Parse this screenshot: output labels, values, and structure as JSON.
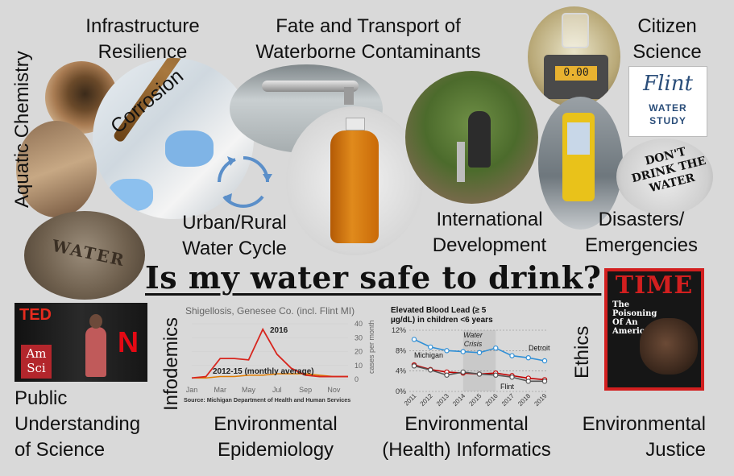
{
  "labels": {
    "aquatic_chemistry": "Aquatic Chemistry",
    "infrastructure_resilience_1": "Infrastructure",
    "infrastructure_resilience_2": "Resilience",
    "fate_transport_1": "Fate and Transport of",
    "fate_transport_2": "Waterborne Contaminants",
    "citizen_science_1": "Citizen",
    "citizen_science_2": "Science",
    "corrosion": "Corrosion",
    "urban_rural_1": "Urban/Rural",
    "urban_rural_2": "Water Cycle",
    "intl_dev_1": "International",
    "intl_dev_2": "Development",
    "disasters_1": "Disasters/",
    "disasters_2": "Emergencies",
    "main_question": "Is my water safe to drink?",
    "infodemics": "Infodemics",
    "ethics": "Ethics",
    "public_understanding_1": "Public",
    "public_understanding_2": "Understanding",
    "public_understanding_3": "of Science",
    "env_epi_1": "Environmental",
    "env_epi_2": "Epidemiology",
    "env_info_1": "Environmental",
    "env_info_2": "(Health) Informatics",
    "env_justice_1": "Environmental",
    "env_justice_2": "Justice"
  },
  "images": {
    "flint_logo_script": "Flint",
    "flint_logo_water": "WATER",
    "flint_logo_study": "STUDY",
    "dont_drink_1": "DON'T",
    "dont_drink_2": "DRINK THE",
    "dont_drink_3": "WATER",
    "manhole_text": "WATER",
    "ted_logo": "TED",
    "amsci_1": "Am",
    "amsci_2": "Sci",
    "netflix": "N",
    "time_logo": "TIME",
    "time_headline_1": "The",
    "time_headline_2": "Poisoning",
    "time_headline_3": "Of An",
    "time_headline_4": "American City",
    "meter_reading": "0.00"
  },
  "chart_shigellosis": {
    "title": "Shigellosis, Genesee Co. (incl. Flint MI)",
    "source": "Source: Michigan Department of Health and Human Services",
    "ylabel": "cases per month",
    "series_2016_label": "2016",
    "series_avg_label": "2012-15 (monthly average)",
    "x_ticks": [
      "Jan",
      "Mar",
      "May",
      "Jul",
      "Sep",
      "Nov"
    ],
    "y_ticks": [
      "0",
      "10",
      "20",
      "30",
      "40"
    ],
    "colors": {
      "s2016": "#d7261e",
      "avg": "#e07b00"
    }
  },
  "chart_data": [
    {
      "type": "line",
      "title": "Shigellosis, Genesee Co. (incl. Flint MI)",
      "ylabel": "cases per month",
      "x": [
        "Jan",
        "Feb",
        "Mar",
        "Apr",
        "May",
        "Jun",
        "Jul",
        "Aug",
        "Sep",
        "Oct",
        "Nov",
        "Dec"
      ],
      "ylim": [
        0,
        40
      ],
      "series": [
        {
          "name": "2016",
          "values": [
            1,
            2,
            15,
            15,
            14,
            36,
            18,
            8,
            3,
            2,
            2,
            2
          ]
        },
        {
          "name": "2012-15 (monthly average)",
          "values": [
            1,
            1,
            2,
            2,
            3,
            3,
            4,
            4,
            4,
            3,
            2,
            2
          ]
        }
      ]
    },
    {
      "type": "line",
      "title": "Elevated Blood Lead (≥ 5 µg/dL) in children <6 years",
      "x": [
        "2011",
        "2012",
        "2013",
        "2014",
        "2015",
        "2016",
        "2017",
        "2018",
        "2019"
      ],
      "ylim": [
        0,
        12
      ],
      "annotation": "Water Crisis",
      "series": [
        {
          "name": "Detroit",
          "values": [
            10.2,
            8.7,
            8.0,
            7.8,
            7.6,
            8.5,
            7.0,
            6.6,
            6.0
          ]
        },
        {
          "name": "Michigan",
          "values": [
            5.2,
            4.3,
            3.8,
            3.6,
            3.4,
            3.6,
            3.1,
            2.6,
            2.3
          ]
        },
        {
          "name": "Flint",
          "values": [
            5.0,
            4.2,
            3.2,
            3.8,
            3.4,
            3.2,
            2.8,
            2.0,
            2.0
          ]
        }
      ]
    }
  ],
  "chart_lead": {
    "title_1": "Elevated Blood Lead (≥ 5",
    "title_2": "µg/dL) in children <6 years",
    "annotation_1": "Water",
    "annotation_2": "Crisis",
    "y_ticks": [
      "0%",
      "4%",
      "8%",
      "12%"
    ],
    "x_ticks": [
      "2011",
      "2012",
      "2013",
      "2014",
      "2015",
      "2016",
      "2017",
      "2018",
      "2019"
    ],
    "detroit": "Detroit",
    "michigan": "Michigan",
    "flint": "Flint",
    "colors": {
      "detroit": "#2f8fd6",
      "michigan": "#c00000",
      "flint": "#555555"
    }
  }
}
